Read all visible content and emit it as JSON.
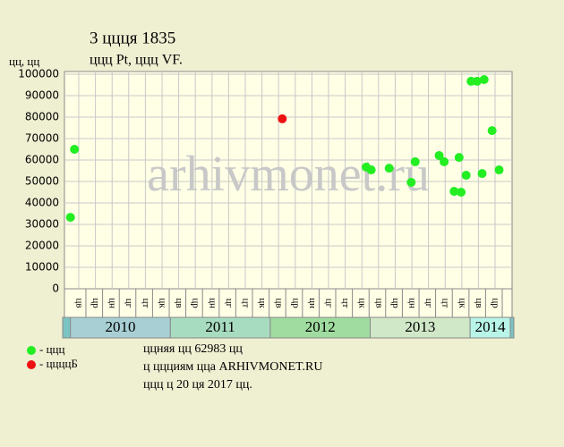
{
  "chart_data": {
    "type": "scatter",
    "title": "3 ццця 1835",
    "subtitle": "ццц Pt, ццц VF.",
    "y_label": "цц, цц",
    "watermark": "arhivmonet.ru",
    "xlim": [
      2009.94,
      2014.42
    ],
    "ylim": [
      0,
      100000
    ],
    "yticks": [
      0,
      10000,
      20000,
      30000,
      40000,
      50000,
      60000,
      70000,
      80000,
      90000,
      100000
    ],
    "grid": true,
    "xticks": [
      {
        "value": 2010.083,
        "label": "цв"
      },
      {
        "value": 2010.25,
        "label": "цр"
      },
      {
        "value": 2010.417,
        "label": "цн"
      },
      {
        "value": 2010.583,
        "label": "цг"
      },
      {
        "value": 2010.75,
        "label": "цт"
      },
      {
        "value": 2010.917,
        "label": "цк"
      },
      {
        "value": 2011.083,
        "label": "цв"
      },
      {
        "value": 2011.25,
        "label": "цр"
      },
      {
        "value": 2011.417,
        "label": "цн"
      },
      {
        "value": 2011.583,
        "label": "цг"
      },
      {
        "value": 2011.75,
        "label": "цт"
      },
      {
        "value": 2011.917,
        "label": "цк"
      },
      {
        "value": 2012.083,
        "label": "цв"
      },
      {
        "value": 2012.25,
        "label": "цр"
      },
      {
        "value": 2012.417,
        "label": "цн"
      },
      {
        "value": 2012.583,
        "label": "цг"
      },
      {
        "value": 2012.75,
        "label": "цт"
      },
      {
        "value": 2012.917,
        "label": "цк"
      },
      {
        "value": 2013.083,
        "label": "цв"
      },
      {
        "value": 2013.25,
        "label": "цр"
      },
      {
        "value": 2013.417,
        "label": "цн"
      },
      {
        "value": 2013.583,
        "label": "цг"
      },
      {
        "value": 2013.75,
        "label": "цт"
      },
      {
        "value": 2013.917,
        "label": "цк"
      },
      {
        "value": 2014.083,
        "label": "цв"
      },
      {
        "value": 2014.25,
        "label": "цр"
      }
    ],
    "x_groups": [
      {
        "value": 2010,
        "label": "2010",
        "color": "#a8d0d4"
      },
      {
        "value": 2011,
        "label": "2011",
        "color": "#a8dcc0"
      },
      {
        "value": 2012,
        "label": "2012",
        "color": "#a0dca0"
      },
      {
        "value": 2013,
        "label": "2013",
        "color": "#d0e8c8"
      },
      {
        "value": 2014,
        "label": "2014",
        "color": "#b8f4e8"
      }
    ],
    "series": [
      {
        "name": "- ццц",
        "color": "#22ee22",
        "x": [
          2010.0,
          2010.04,
          2012.96,
          2013.01,
          2013.19,
          2013.41,
          2013.45,
          2013.69,
          2013.74,
          2013.84,
          2013.89,
          2013.91,
          2013.96,
          2014.01,
          2014.07,
          2014.14,
          2014.12,
          2014.22,
          2014.29
        ],
        "values": [
          33300,
          65000,
          56700,
          55400,
          56200,
          49600,
          59200,
          62100,
          59200,
          45400,
          61200,
          45000,
          52900,
          96700,
          96700,
          97500,
          53700,
          73700,
          55400
        ]
      },
      {
        "name": "- ццццБ",
        "color": "#ee1111",
        "x": [
          2012.12
        ],
        "values": [
          79200
        ]
      }
    ],
    "notes": [
      "ццняя цц 62983 цц",
      "ц ццциям цца ARHIVMONET.RU",
      "ццц ц 20 ця 2017 цц."
    ]
  }
}
